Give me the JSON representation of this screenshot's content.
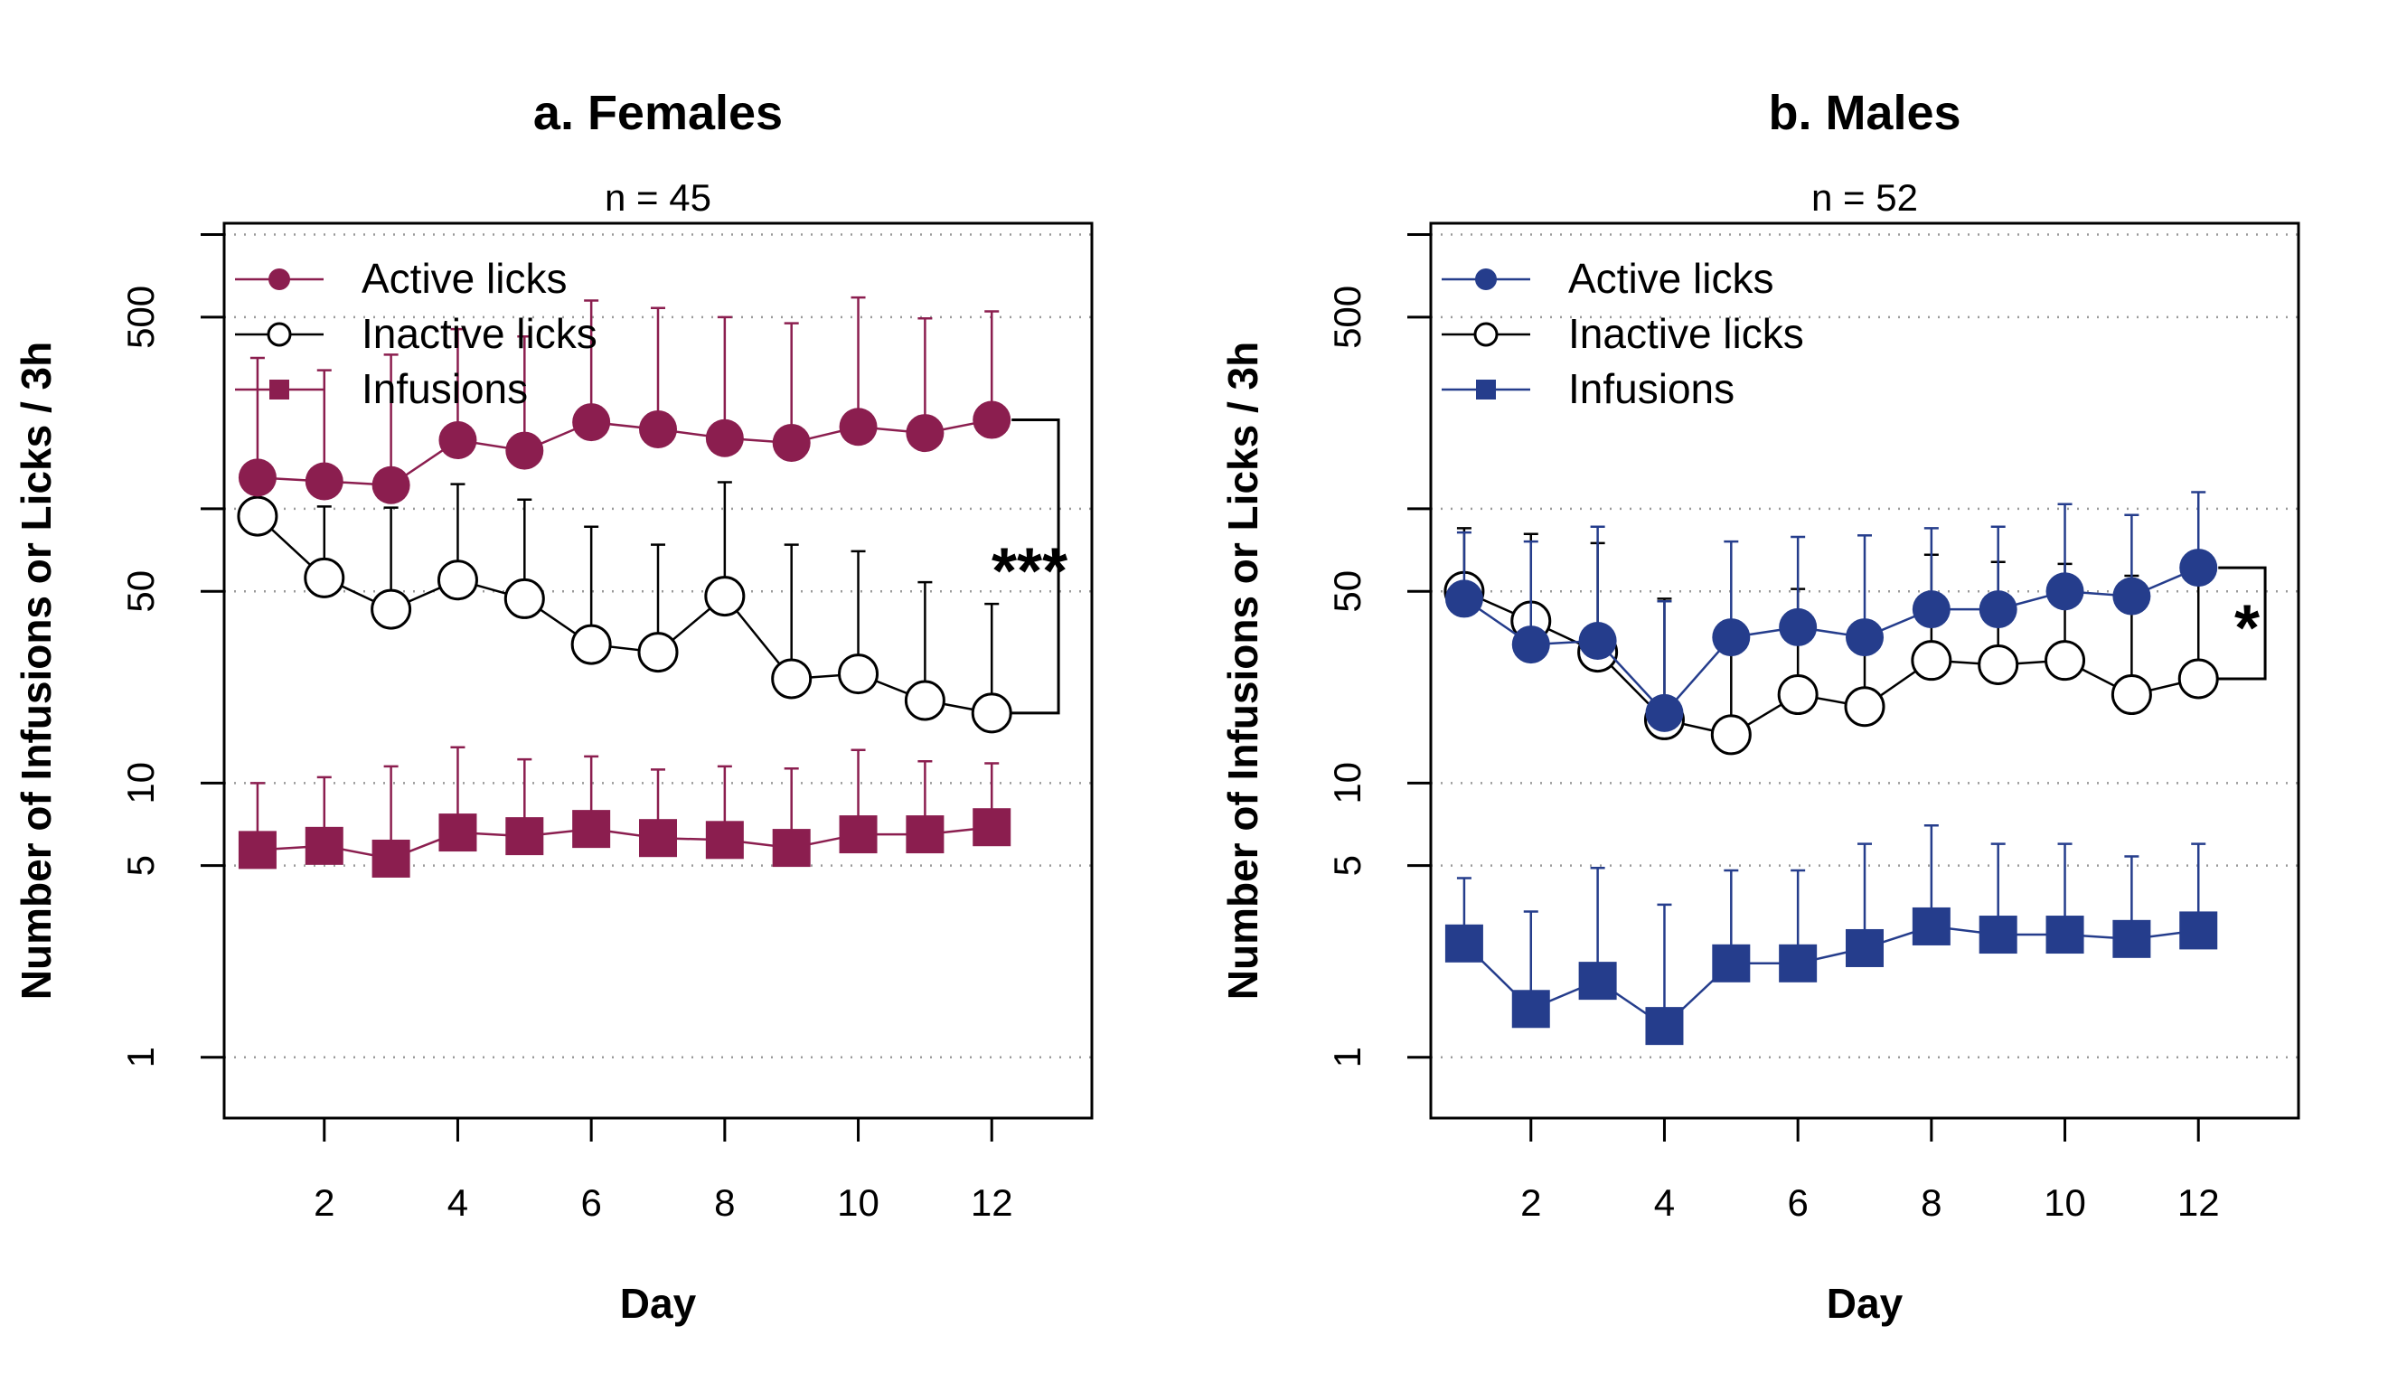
{
  "chart_data": [
    {
      "type": "line",
      "title": "a. Females",
      "subtitle": "n = 45",
      "xlabel": "Day",
      "ylabel": "Number of Infusions or Licks / 3h",
      "yscale": "log",
      "xlim": [
        0.5,
        13.5
      ],
      "ylim": [
        0.6,
        1100
      ],
      "x_ticks": [
        2,
        4,
        6,
        8,
        10,
        12
      ],
      "x_tick_labels": [
        "2",
        "4",
        "6",
        "8",
        "10",
        "12"
      ],
      "y_ticks": [
        1,
        5,
        10,
        50,
        100,
        500,
        1000
      ],
      "y_tick_labels": [
        "1",
        "5",
        "10",
        "50",
        "",
        "500",
        ""
      ],
      "grid": "horizontal dotted",
      "legend_position": "top-left",
      "color": "#8b1e4f",
      "x": [
        1,
        2,
        3,
        4,
        5,
        6,
        7,
        8,
        9,
        10,
        11,
        12
      ],
      "series": [
        {
          "name": "Active licks",
          "marker": "filled-circle",
          "values": [
            130,
            126,
            122,
            178,
            163,
            207,
            195,
            181,
            174,
            199,
            189,
            211
          ],
          "error_upper": [
            355,
            320,
            365,
            452,
            425,
            575,
            540,
            500,
            475,
            590,
            495,
            525
          ]
        },
        {
          "name": "Inactive licks",
          "marker": "open-circle",
          "values": [
            94,
            56,
            43,
            55,
            47,
            32,
            30,
            48,
            24,
            25,
            20,
            18
          ],
          "error_upper": [
            140,
            102,
            101,
            123,
            108,
            86,
            74,
            125,
            74,
            70,
            54,
            45
          ]
        },
        {
          "name": "Infusions",
          "marker": "filled-square",
          "values": [
            5.7,
            5.9,
            5.3,
            6.6,
            6.4,
            6.8,
            6.3,
            6.2,
            5.8,
            6.5,
            6.5,
            6.9
          ],
          "error_upper": [
            10,
            10.5,
            11.5,
            13.5,
            12.2,
            12.5,
            11.2,
            11.5,
            11.3,
            13.2,
            12,
            11.8
          ]
        }
      ],
      "annotation": "***",
      "comparison_day": 12
    },
    {
      "type": "line",
      "title": "b. Males",
      "subtitle": "n = 52",
      "xlabel": "Day",
      "ylabel": "Number of Infusions or Licks / 3h",
      "yscale": "log",
      "xlim": [
        0.5,
        13.5
      ],
      "ylim": [
        0.6,
        1100
      ],
      "x_ticks": [
        2,
        4,
        6,
        8,
        10,
        12
      ],
      "x_tick_labels": [
        "2",
        "4",
        "6",
        "8",
        "10",
        "12"
      ],
      "y_ticks": [
        1,
        5,
        10,
        50,
        100,
        500,
        1000
      ],
      "y_tick_labels": [
        "1",
        "5",
        "10",
        "50",
        "",
        "500",
        ""
      ],
      "grid": "horizontal dotted",
      "legend_position": "top-left",
      "color": "#253d8c",
      "x": [
        1,
        2,
        3,
        4,
        5,
        6,
        7,
        8,
        9,
        10,
        11,
        12
      ],
      "series": [
        {
          "name": "Active licks",
          "marker": "filled-circle",
          "values": [
            47,
            32,
            33,
            18,
            34,
            37,
            34,
            43,
            43,
            50,
            48,
            61
          ],
          "error_upper": [
            82,
            76,
            86,
            46,
            76,
            79,
            80,
            85,
            86,
            104,
            95,
            115
          ]
        },
        {
          "name": "Inactive licks",
          "marker": "open-circle",
          "values": [
            50,
            39,
            30,
            17,
            15,
            21,
            19,
            28,
            27,
            28,
            21,
            24
          ],
          "error_upper": [
            85,
            81,
            75,
            47,
            38,
            51,
            36,
            68,
            64,
            63,
            57,
            57
          ]
        },
        {
          "name": "Infusions",
          "marker": "filled-square",
          "values": [
            2.6,
            1.5,
            1.9,
            1.3,
            2.2,
            2.2,
            2.5,
            3.0,
            2.8,
            2.8,
            2.7,
            2.9
          ],
          "error_upper": [
            4.5,
            3.4,
            4.9,
            3.6,
            4.8,
            4.8,
            6.0,
            7.0,
            6.0,
            6.0,
            5.4,
            6.0
          ]
        }
      ],
      "annotation": "*",
      "comparison_day": 12
    }
  ]
}
